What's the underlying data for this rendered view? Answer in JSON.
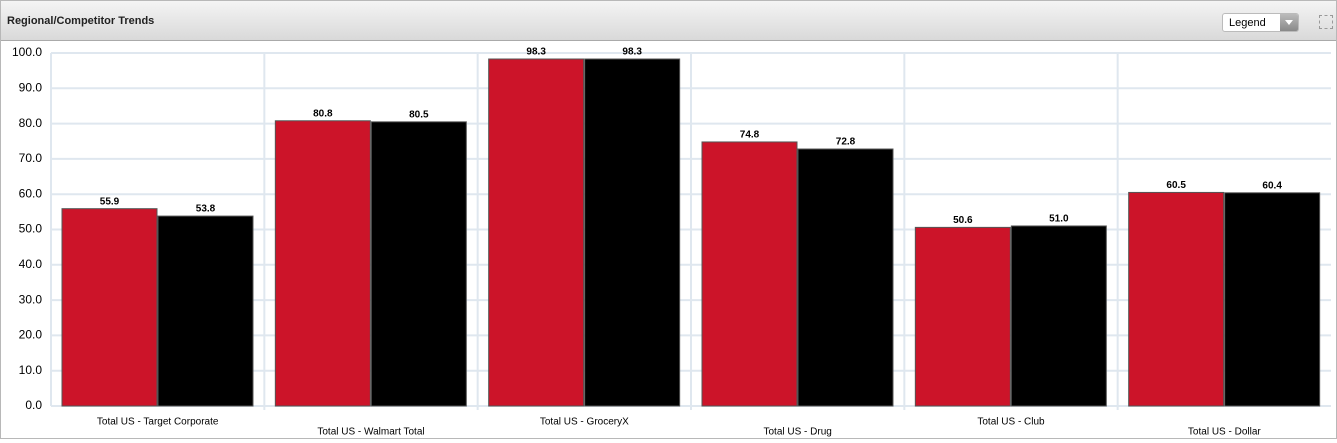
{
  "header": {
    "title": "Regional/Competitor Trends",
    "legend_button": "Legend"
  },
  "chart_data": {
    "type": "bar",
    "categories": [
      "Total US - Target Corporate",
      "Total US - Walmart Total",
      "Total US - GroceryX",
      "Total US - Drug",
      "Total US - Club",
      "Total US - Dollar"
    ],
    "series": [
      {
        "color": "#cc1429",
        "values": [
          55.9,
          80.8,
          98.3,
          74.8,
          50.6,
          60.5
        ],
        "value_labels": [
          "55.9",
          "80.8",
          "98.3",
          "74.8",
          "50.6",
          "60.5"
        ]
      },
      {
        "color": "#000000",
        "values": [
          53.8,
          80.5,
          98.3,
          72.8,
          51.0,
          60.4
        ],
        "value_labels": [
          "53.8",
          "80.5",
          "98.3",
          "72.8",
          "51.0",
          "60.4"
        ]
      }
    ],
    "ylim": [
      0,
      100
    ],
    "yticks": [
      {
        "value": 0,
        "label": "0.0"
      },
      {
        "value": 10,
        "label": "10.0"
      },
      {
        "value": 20,
        "label": "20.0"
      },
      {
        "value": 30,
        "label": "30.0"
      },
      {
        "value": 40,
        "label": "40.0"
      },
      {
        "value": 50,
        "label": "50.0"
      },
      {
        "value": 60,
        "label": "60.0"
      },
      {
        "value": 70,
        "label": "70.0"
      },
      {
        "value": 80,
        "label": "80.0"
      },
      {
        "value": 90,
        "label": "90.0"
      },
      {
        "value": 100,
        "label": "100.0"
      }
    ],
    "grid": true
  }
}
